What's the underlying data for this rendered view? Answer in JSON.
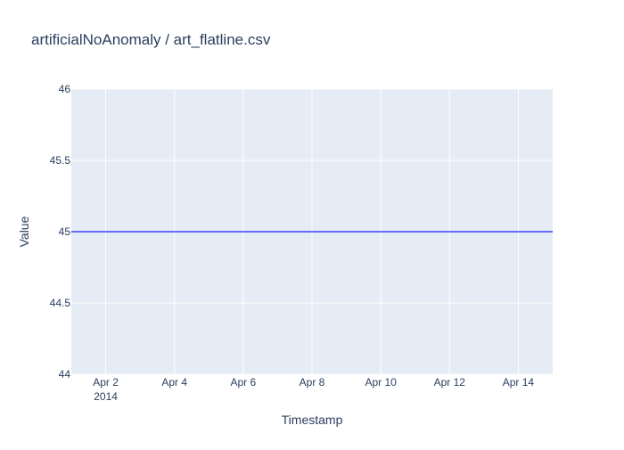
{
  "chart_data": {
    "type": "line",
    "title": "artificialNoAnomaly / art_flatline.csv",
    "xlabel": "Timestamp",
    "ylabel": "Value",
    "x_range": [
      "2014-04-01",
      "2014-04-15"
    ],
    "ylim": [
      44,
      46
    ],
    "y_ticks": [
      {
        "value": 44,
        "label": "44"
      },
      {
        "value": 44.5,
        "label": "44.5"
      },
      {
        "value": 45,
        "label": "45"
      },
      {
        "value": 45.5,
        "label": "45.5"
      },
      {
        "value": 46,
        "label": "46"
      }
    ],
    "x_ticks": [
      {
        "date": "2014-04-02",
        "label": "Apr 2",
        "sublabel": "2014"
      },
      {
        "date": "2014-04-04",
        "label": "Apr 4"
      },
      {
        "date": "2014-04-06",
        "label": "Apr 6"
      },
      {
        "date": "2014-04-08",
        "label": "Apr 8"
      },
      {
        "date": "2014-04-10",
        "label": "Apr 10"
      },
      {
        "date": "2014-04-12",
        "label": "Apr 12"
      },
      {
        "date": "2014-04-14",
        "label": "Apr 14"
      }
    ],
    "series": [
      {
        "color": "#636efa",
        "points": [
          {
            "x": "2014-04-01",
            "y": 45
          },
          {
            "x": "2014-04-15",
            "y": 45
          }
        ]
      }
    ],
    "grid": true,
    "legend": "none",
    "colors": {
      "plot_bg": "#e5ecf6",
      "grid": "#ffffff",
      "text": "#2a3f5f",
      "tick_text": "#2a3f5f"
    }
  }
}
